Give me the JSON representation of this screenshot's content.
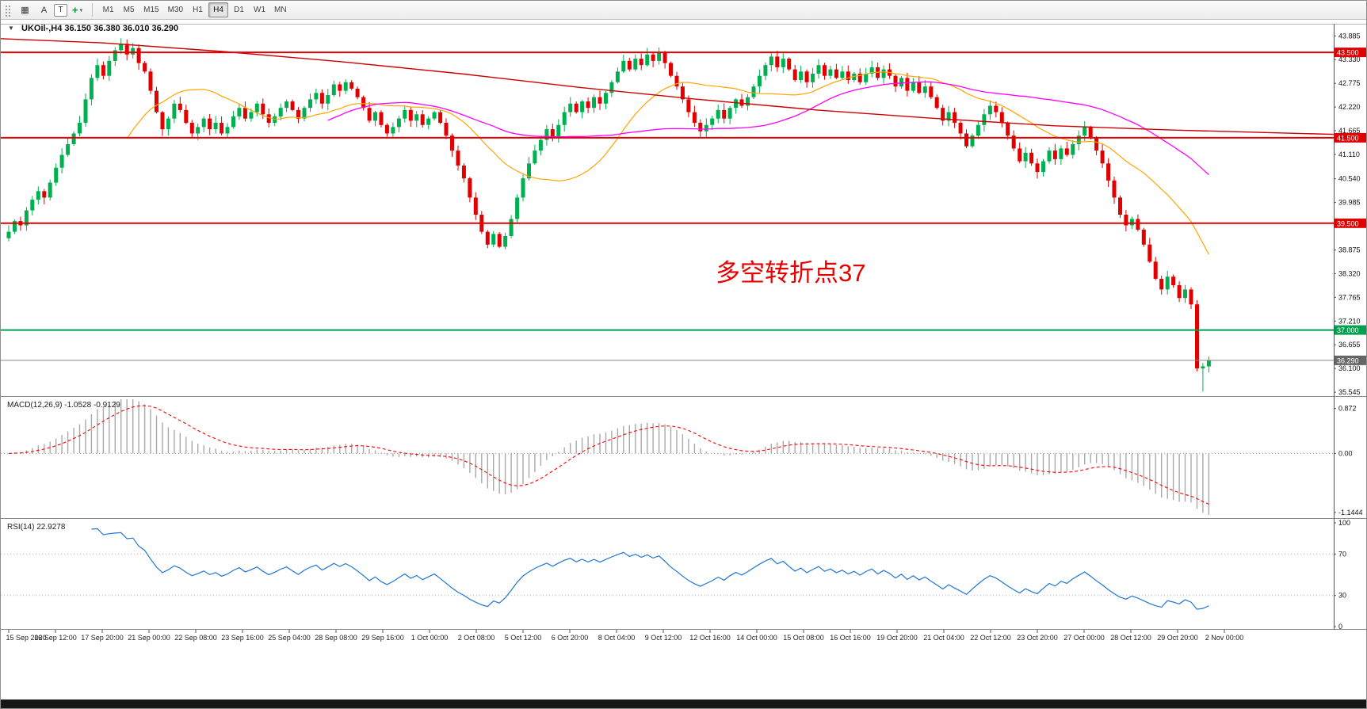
{
  "toolbar": {
    "tools": [
      {
        "name": "chart-grid",
        "glyph": "▦"
      },
      {
        "name": "annotate-a",
        "label": "A"
      },
      {
        "name": "text-tool",
        "label": "T"
      },
      {
        "name": "crosshair-tool",
        "glyph": "+",
        "caret": "▾"
      }
    ],
    "timeframes": [
      "M1",
      "M5",
      "M15",
      "M30",
      "H1",
      "H4",
      "D1",
      "W1",
      "MN"
    ],
    "active_timeframe": "H4"
  },
  "chart": {
    "title_text": "UKOil-,H4 36.150 36.380 36.010 36.290",
    "symbol": "UKOil-",
    "timeframe": "H4"
  },
  "annotation": {
    "text": "多空转折点37",
    "color": "#e60000"
  },
  "macd": {
    "label": "MACD(12,26,9) -1.0528 -0.9129",
    "params": [
      12,
      26,
      9
    ],
    "axis_labels": [
      "0.872",
      "0.00",
      "-1.1444"
    ]
  },
  "rsi": {
    "label": "RSI(14) 22.9278",
    "period": 14,
    "levels": [
      70,
      30
    ],
    "axis_labels": [
      "100",
      "70",
      "30",
      "0"
    ]
  },
  "chart_data": {
    "type": "candlestick",
    "symbol": "UKOil-",
    "timeframe": "H4",
    "first_open": 39.15,
    "closes": [
      39.3,
      39.55,
      39.45,
      39.8,
      40.05,
      40.25,
      40.1,
      40.45,
      40.8,
      41.1,
      41.35,
      41.6,
      41.85,
      42.4,
      42.9,
      43.2,
      42.95,
      43.3,
      43.55,
      43.7,
      43.45,
      43.6,
      43.25,
      43.05,
      42.6,
      42.1,
      41.7,
      41.95,
      42.3,
      42.15,
      41.85,
      41.6,
      41.75,
      41.95,
      41.7,
      41.85,
      41.6,
      41.75,
      42.0,
      42.2,
      41.95,
      42.1,
      42.3,
      42.05,
      41.85,
      42.0,
      42.2,
      42.35,
      42.15,
      41.95,
      42.2,
      42.4,
      42.55,
      42.3,
      42.5,
      42.75,
      42.6,
      42.8,
      42.65,
      42.45,
      42.2,
      41.9,
      42.1,
      41.8,
      41.6,
      41.75,
      41.95,
      42.15,
      41.9,
      42.05,
      41.8,
      41.95,
      42.1,
      41.85,
      41.55,
      41.2,
      40.85,
      40.55,
      40.1,
      39.7,
      39.3,
      39.0,
      39.25,
      38.95,
      39.2,
      39.6,
      40.1,
      40.55,
      40.9,
      41.2,
      41.45,
      41.7,
      41.5,
      41.8,
      42.1,
      42.3,
      42.1,
      42.35,
      42.2,
      42.45,
      42.3,
      42.55,
      42.8,
      43.05,
      43.3,
      43.1,
      43.35,
      43.2,
      43.45,
      43.3,
      43.5,
      43.25,
      42.95,
      42.7,
      42.4,
      42.1,
      41.85,
      41.65,
      41.8,
      41.95,
      42.15,
      41.95,
      42.2,
      42.4,
      42.25,
      42.45,
      42.7,
      42.95,
      43.2,
      43.4,
      43.15,
      43.35,
      43.1,
      42.85,
      43.05,
      42.8,
      43.0,
      43.2,
      42.95,
      43.1,
      42.9,
      43.05,
      42.85,
      43.0,
      42.8,
      43.0,
      43.15,
      42.9,
      43.1,
      42.95,
      42.7,
      42.9,
      42.6,
      42.8,
      42.55,
      42.7,
      42.45,
      42.2,
      41.9,
      42.1,
      41.85,
      41.6,
      41.3,
      41.55,
      41.8,
      42.05,
      42.25,
      42.1,
      41.85,
      41.55,
      41.25,
      40.95,
      41.15,
      40.9,
      40.7,
      40.95,
      41.2,
      41.0,
      41.25,
      41.1,
      41.35,
      41.55,
      41.75,
      41.5,
      41.2,
      40.9,
      40.5,
      40.1,
      39.7,
      39.45,
      39.6,
      39.35,
      39.0,
      38.6,
      38.2,
      37.95,
      38.25,
      38.05,
      37.75,
      37.95,
      37.6,
      36.1,
      36.15,
      36.29
    ],
    "last_candle": {
      "open": 36.15,
      "high": 36.38,
      "low": 36.01,
      "close": 36.29
    },
    "hammer_low": 35.56,
    "ma_fast_period": 21,
    "ma_slow_period": 55,
    "trendline_points": [
      [
        0,
        43.82
      ],
      [
        130,
        43.72
      ],
      [
        280,
        43.52
      ],
      [
        430,
        43.28
      ],
      [
        580,
        43.0
      ],
      [
        730,
        42.68
      ],
      [
        880,
        42.4
      ],
      [
        1030,
        42.15
      ],
      [
        1180,
        41.95
      ],
      [
        1330,
        41.78
      ],
      [
        1480,
        41.68
      ],
      [
        1682,
        41.58
      ]
    ],
    "hlines": [
      {
        "price": 43.5,
        "label": "43.500",
        "color": "#e00000",
        "width": 2
      },
      {
        "price": 41.5,
        "label": "41.500",
        "color": "#e00000",
        "width": 2
      },
      {
        "price": 39.5,
        "label": "39.500",
        "color": "#e00000",
        "width": 2
      },
      {
        "price": 37.0,
        "label": "37.000",
        "color": "#00a050",
        "width": 2
      }
    ],
    "bid": {
      "price": 36.29,
      "label": "36.290"
    },
    "price_ticks": [
      "43.885",
      "43.330",
      "42.775",
      "42.220",
      "41.665",
      "41.110",
      "40.540",
      "39.985",
      "38.875",
      "38.320",
      "37.765",
      "37.210",
      "36.655",
      "36.100",
      "35.545"
    ],
    "price_range_visible": [
      35.49,
      44.15
    ],
    "time_labels": [
      "15 Sep 2020",
      "16 Sep 12:00",
      "17 Sep 20:00",
      "21 Sep 00:00",
      "22 Sep 08:00",
      "23 Sep 16:00",
      "25 Sep 04:00",
      "28 Sep 08:00",
      "29 Sep 16:00",
      "1 Oct 00:00",
      "2 Oct 08:00",
      "5 Oct 12:00",
      "6 Oct 20:00",
      "8 Oct 04:00",
      "9 Oct 12:00",
      "12 Oct 16:00",
      "14 Oct 00:00",
      "15 Oct 08:00",
      "16 Oct 16:00",
      "19 Oct 20:00",
      "21 Oct 04:00",
      "22 Oct 12:00",
      "23 Oct 20:00",
      "27 Oct 00:00",
      "28 Oct 12:00",
      "29 Oct 20:00",
      "2 Nov 00:00"
    ]
  },
  "colors": {
    "bull": "#00b050",
    "bear": "#e00000",
    "ma_fast": "#ffa500",
    "ma_slow": "#ff00ff",
    "trend": "#cc0000",
    "macd_hist": "#a9a9a9",
    "macd_signal": "#ff0000",
    "rsi": "#2176d2",
    "bid_line": "#888888",
    "bid_label_bg": "#666666",
    "axis_text": "#111111",
    "annotation": "#e60000"
  }
}
